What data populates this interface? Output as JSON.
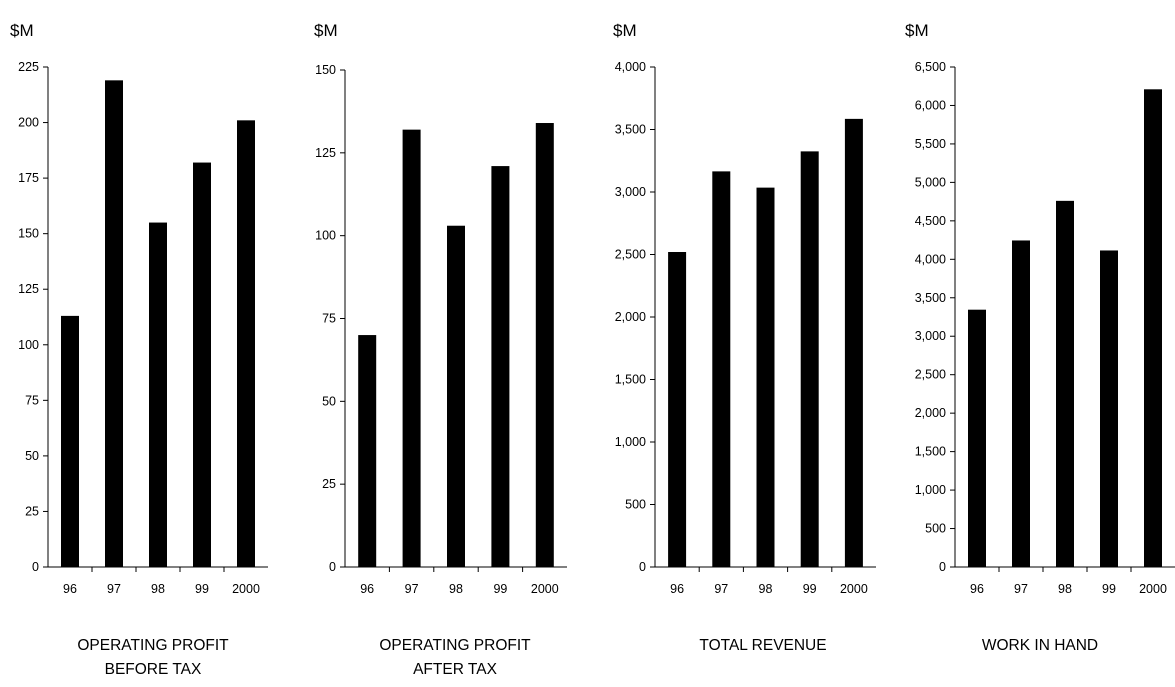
{
  "chart_data": [
    {
      "type": "bar",
      "unit_label": "$M",
      "title_lines": [
        "OPERATING PROFIT",
        "BEFORE TAX"
      ],
      "categories": [
        "96",
        "97",
        "98",
        "99",
        "2000"
      ],
      "values": [
        113,
        219,
        155,
        182,
        201
      ],
      "ylim": [
        0,
        225
      ],
      "yticks": [
        0,
        25,
        50,
        75,
        100,
        125,
        150,
        175,
        200,
        225
      ],
      "ytick_labels": [
        "0",
        "25",
        "50",
        "75",
        "100",
        "125",
        "150",
        "175",
        "200",
        "225"
      ],
      "bar_color": "#000000",
      "grid": false
    },
    {
      "type": "bar",
      "unit_label": "$M",
      "title_lines": [
        "OPERATING PROFIT",
        "AFTER TAX"
      ],
      "categories": [
        "96",
        "97",
        "98",
        "99",
        "2000"
      ],
      "values": [
        70,
        132,
        103,
        121,
        134
      ],
      "ylim": [
        0,
        150
      ],
      "yticks": [
        0,
        25,
        50,
        75,
        100,
        125,
        150
      ],
      "ytick_labels": [
        "0",
        "25",
        "50",
        "75",
        "100",
        "125",
        "150"
      ],
      "bar_color": "#000000",
      "grid": false
    },
    {
      "type": "bar",
      "unit_label": "$M",
      "title_lines": [
        "TOTAL REVENUE"
      ],
      "categories": [
        "96",
        "97",
        "98",
        "99",
        "2000"
      ],
      "values": [
        2520,
        3165,
        3035,
        3325,
        3585
      ],
      "ylim": [
        0,
        4000
      ],
      "yticks": [
        0,
        500,
        1000,
        1500,
        2000,
        2500,
        3000,
        3500,
        4000
      ],
      "ytick_labels": [
        "0",
        "500",
        "1,000",
        "1,500",
        "2,000",
        "2,500",
        "3,000",
        "3,500",
        "4,000"
      ],
      "bar_color": "#000000",
      "grid": false
    },
    {
      "type": "bar",
      "unit_label": "$M",
      "title_lines": [
        "WORK IN HAND"
      ],
      "categories": [
        "96",
        "97",
        "98",
        "99",
        "2000"
      ],
      "values": [
        3345,
        4245,
        4760,
        4115,
        6210
      ],
      "ylim": [
        0,
        6500
      ],
      "yticks": [
        0,
        500,
        1000,
        1500,
        2000,
        2500,
        3000,
        3500,
        4000,
        4500,
        5000,
        5500,
        6000,
        6500
      ],
      "ytick_labels": [
        "0",
        "500",
        "1,000",
        "1,500",
        "2,000",
        "2,500",
        "3,000",
        "3,500",
        "4,000",
        "4,500",
        "5,000",
        "5,500",
        "6,000",
        "6,500"
      ],
      "bar_color": "#000000",
      "grid": false
    }
  ]
}
